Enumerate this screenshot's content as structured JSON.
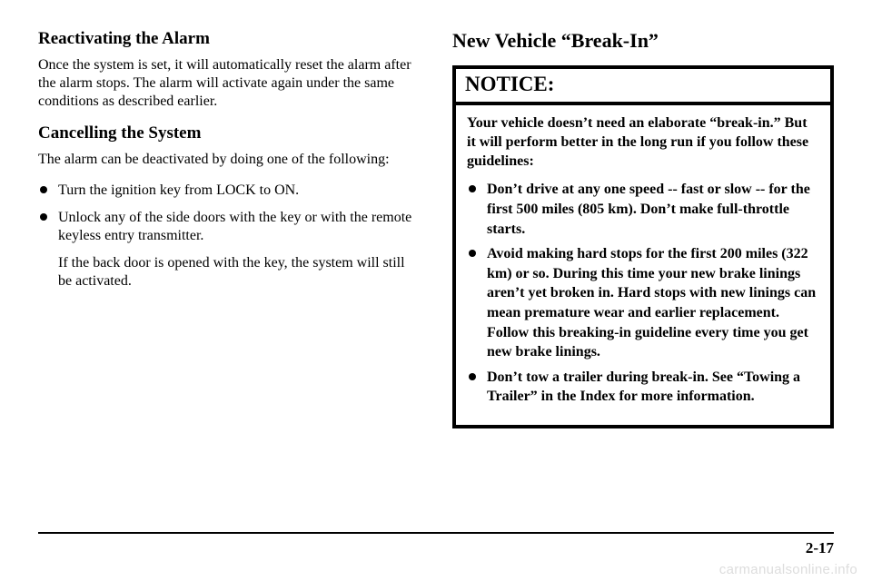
{
  "left": {
    "h1": "Reactivating the Alarm",
    "p1": "Once the system is set, it will automatically reset the alarm after the alarm stops. The alarm will activate again under the same conditions as described earlier.",
    "h2": "Cancelling the System",
    "p2": "The alarm can be deactivated by doing one of the following:",
    "b1": "Turn the ignition key from LOCK to ON.",
    "b2a": "Unlock any of the side doors with the key or with the remote keyless entry transmitter.",
    "b2b": "If the back door is opened with the key, the system will still be activated."
  },
  "right": {
    "h1": "New Vehicle “Break-In”",
    "notice_label": "NOTICE:",
    "intro": "Your vehicle doesn’t need an elaborate “break-in.” But it will perform better in the long run if you follow these guidelines:",
    "n1": "Don’t drive at any one speed -- fast or slow -- for the first 500 miles (805 km). Don’t make full-throttle starts.",
    "n2": "Avoid making hard stops for the first 200 miles (322 km) or so. During this time your new brake linings aren’t yet broken in. Hard stops with new linings can mean premature wear and earlier replacement. Follow this breaking-in guideline every time you get new brake linings.",
    "n3": "Don’t tow a trailer during break-in. See “Towing a Trailer” in the Index for more information."
  },
  "page_number": "2-17",
  "watermark": "carmanualsonline.info"
}
